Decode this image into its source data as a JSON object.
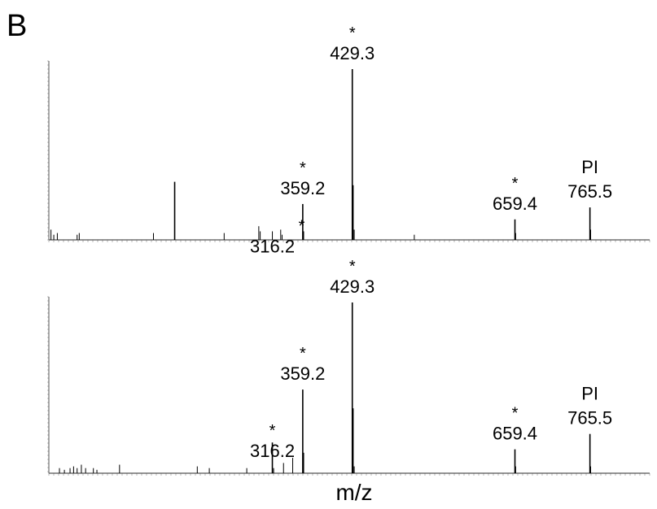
{
  "panel_letter": "B",
  "xlabel": "m/z",
  "colors": {
    "trace": "#000000",
    "axis": "#555555",
    "background": "#ffffff"
  },
  "chart_data": [
    {
      "type": "line",
      "title": "",
      "xlabel": "",
      "ylabel": "",
      "xlim": [
        0,
        850
      ],
      "ylim": [
        0,
        100
      ],
      "grid": false,
      "legend": "none",
      "peaks": [
        {
          "mz": 3,
          "i": 6
        },
        {
          "mz": 7,
          "i": 3
        },
        {
          "mz": 12,
          "i": 4
        },
        {
          "mz": 40,
          "i": 3
        },
        {
          "mz": 43,
          "i": 4
        },
        {
          "mz": 148,
          "i": 4
        },
        {
          "mz": 178,
          "i": 34
        },
        {
          "mz": 248,
          "i": 4
        },
        {
          "mz": 297,
          "i": 8
        },
        {
          "mz": 299,
          "i": 5
        },
        {
          "mz": 316.2,
          "i": 5
        },
        {
          "mz": 328,
          "i": 6
        },
        {
          "mz": 330,
          "i": 3
        },
        {
          "mz": 359.2,
          "i": 21
        },
        {
          "mz": 360.5,
          "i": 5
        },
        {
          "mz": 429.3,
          "i": 100
        },
        {
          "mz": 430.3,
          "i": 32
        },
        {
          "mz": 432,
          "i": 6
        },
        {
          "mz": 517,
          "i": 3
        },
        {
          "mz": 659.4,
          "i": 12
        },
        {
          "mz": 660.4,
          "i": 4
        },
        {
          "mz": 765.5,
          "i": 19
        },
        {
          "mz": 766.5,
          "i": 6
        }
      ],
      "annotations": [
        {
          "mz": 316.2,
          "text": "316.2",
          "star": true
        },
        {
          "mz": 359.2,
          "text": "359.2",
          "star": true
        },
        {
          "mz": 429.3,
          "text": "429.3",
          "star": true
        },
        {
          "mz": 659.4,
          "text": "659.4",
          "star": true
        },
        {
          "mz": 765.5,
          "text": "765.5",
          "star": false,
          "prefix": "PI"
        }
      ]
    },
    {
      "type": "line",
      "title": "",
      "xlabel": "m/z",
      "ylabel": "",
      "xlim": [
        0,
        850
      ],
      "ylim": [
        0,
        100
      ],
      "grid": false,
      "legend": "none",
      "peaks": [
        {
          "mz": 15,
          "i": 3
        },
        {
          "mz": 22,
          "i": 2
        },
        {
          "mz": 30,
          "i": 3
        },
        {
          "mz": 35,
          "i": 4
        },
        {
          "mz": 40,
          "i": 3
        },
        {
          "mz": 46,
          "i": 5
        },
        {
          "mz": 52,
          "i": 3
        },
        {
          "mz": 63,
          "i": 3
        },
        {
          "mz": 68,
          "i": 2
        },
        {
          "mz": 100,
          "i": 5
        },
        {
          "mz": 210,
          "i": 4
        },
        {
          "mz": 227,
          "i": 3
        },
        {
          "mz": 280,
          "i": 3
        },
        {
          "mz": 316.2,
          "i": 18
        },
        {
          "mz": 318,
          "i": 3
        },
        {
          "mz": 332,
          "i": 6
        },
        {
          "mz": 345,
          "i": 9
        },
        {
          "mz": 359.2,
          "i": 49
        },
        {
          "mz": 360.2,
          "i": 12
        },
        {
          "mz": 429.3,
          "i": 100
        },
        {
          "mz": 430.3,
          "i": 38
        },
        {
          "mz": 432,
          "i": 4
        },
        {
          "mz": 659.4,
          "i": 14
        },
        {
          "mz": 660.4,
          "i": 4
        },
        {
          "mz": 765.5,
          "i": 23
        },
        {
          "mz": 766.5,
          "i": 4
        }
      ],
      "annotations": [
        {
          "mz": 316.2,
          "text": "316.2",
          "star": true
        },
        {
          "mz": 359.2,
          "text": "359.2",
          "star": true
        },
        {
          "mz": 429.3,
          "text": "429.3",
          "star": true
        },
        {
          "mz": 659.4,
          "text": "659.4",
          "star": true
        },
        {
          "mz": 765.5,
          "text": "765.5",
          "star": false,
          "prefix": "PI"
        }
      ]
    }
  ]
}
